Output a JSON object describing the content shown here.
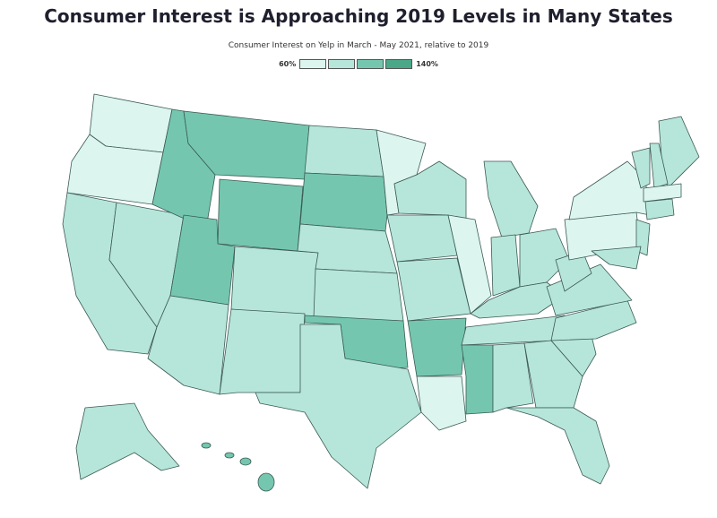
{
  "title": "Consumer Interest is Approaching 2019 Levels in Many States",
  "subtitle": "Consumer Interest on Yelp in March - May 2021, relative to 2019",
  "legend": {
    "min": {
      "value": 60,
      "label": "60%"
    },
    "max": {
      "value": 140,
      "label": "140%"
    },
    "colors": [
      "#dcf5ef",
      "#b6e6d9",
      "#74c7ae",
      "#4aa888"
    ]
  }
}
